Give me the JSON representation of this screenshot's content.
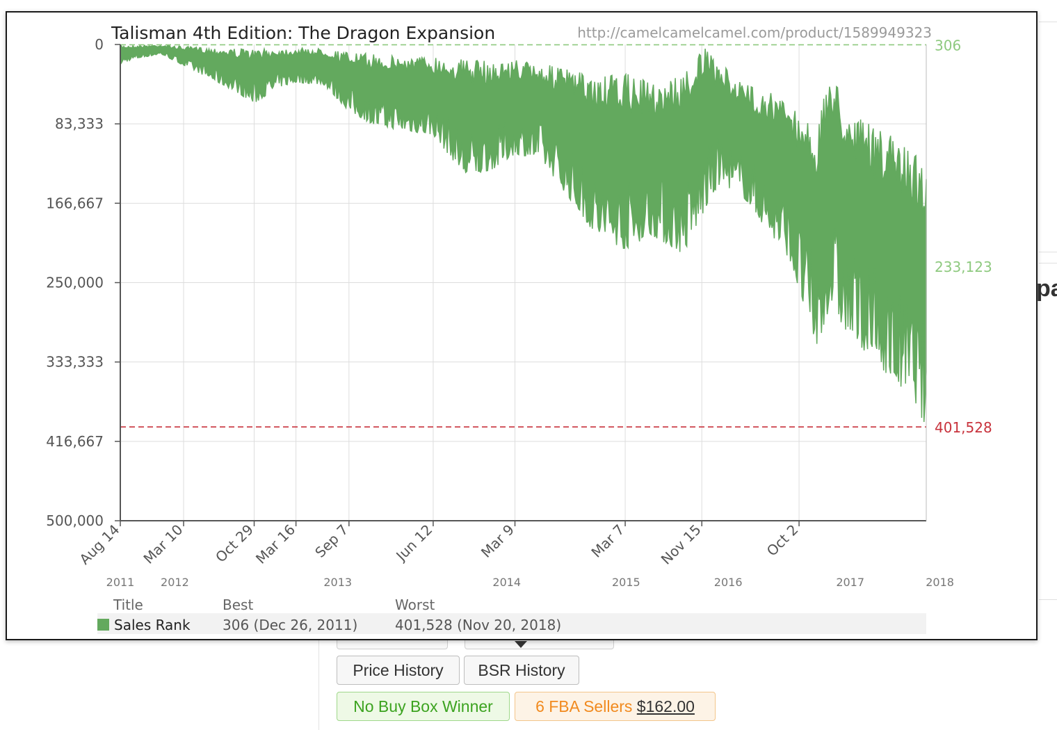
{
  "buttons": {
    "price_history": "Price History",
    "bsr_history": "BSR History",
    "no_buy_box": "No Buy Box Winner",
    "fba_sellers": "6 FBA Sellers",
    "fba_price": "$162.00"
  },
  "background_text": "pa",
  "colors": {
    "series": "#63a95e",
    "best_line": "#8ec97f",
    "worst_line": "#c8323c",
    "axis": "#555555",
    "grid": "#dddddd",
    "url": "#9a9a9a",
    "label": "#555555"
  },
  "chart_data": {
    "type": "area",
    "title": "Talisman 4th Edition: The Dragon Expansion",
    "url": "http://camelcamelcamel.com/product/1589949323",
    "y_inverted": true,
    "ylim": [
      0,
      500000
    ],
    "y_ticks": [
      0,
      83333,
      166667,
      250000,
      333333,
      416667,
      500000
    ],
    "y_tick_labels": [
      "0",
      "83,333",
      "166,667",
      "250,000",
      "333,333",
      "416,667",
      "500,000"
    ],
    "x_range": [
      "2011-08-14",
      "2018-11-26"
    ],
    "x_ticks": [
      {
        "date": "2011-08-14",
        "label": "Aug 14"
      },
      {
        "date": "2012-03-10",
        "label": "Mar 10"
      },
      {
        "date": "2012-10-29",
        "label": "Oct 29"
      },
      {
        "date": "2013-03-16",
        "label": "Mar 16"
      },
      {
        "date": "2013-09-07",
        "label": "Sep 7"
      },
      {
        "date": "2014-06-12",
        "label": "Jun 12"
      },
      {
        "date": "2015-03-09",
        "label": "Mar 9"
      },
      {
        "date": "2016-03-07",
        "label": "Mar 7"
      },
      {
        "date": "2016-11-15",
        "label": "Nov 15"
      },
      {
        "date": "2017-10-02",
        "label": "Oct 2"
      }
    ],
    "year_labels": [
      {
        "date": "2011-08-14",
        "label": "2011"
      },
      {
        "date": "2012-02-10",
        "label": "2012"
      },
      {
        "date": "2013-08-01",
        "label": "2013"
      },
      {
        "date": "2015-02-10",
        "label": "2014"
      },
      {
        "date": "2016-03-10",
        "label": "2015"
      },
      {
        "date": "2017-02-10",
        "label": "2016"
      },
      {
        "date": "2018-03-20",
        "label": "2017"
      },
      {
        "date": "2019-01-10",
        "label": "2018"
      }
    ],
    "reference_lines": [
      {
        "name": "best",
        "value": 306,
        "label": "306"
      },
      {
        "name": "worst",
        "value": 401528,
        "label": "401,528"
      }
    ],
    "current_value_label": "233,123",
    "series": [
      {
        "name": "Sales Rank",
        "envelope": [
          {
            "x": "2011-08-14",
            "best": 500,
            "worst": 20000
          },
          {
            "x": "2011-10-01",
            "best": 800,
            "worst": 15000
          },
          {
            "x": "2011-12-26",
            "best": 306,
            "worst": 10000
          },
          {
            "x": "2012-03-10",
            "best": 2000,
            "worst": 22000
          },
          {
            "x": "2012-06-01",
            "best": 3000,
            "worst": 35000
          },
          {
            "x": "2012-09-01",
            "best": 4000,
            "worst": 50000
          },
          {
            "x": "2012-10-29",
            "best": 5000,
            "worst": 62000
          },
          {
            "x": "2013-01-15",
            "best": 4000,
            "worst": 45000
          },
          {
            "x": "2013-03-16",
            "best": 3500,
            "worst": 40000
          },
          {
            "x": "2013-06-15",
            "best": 4000,
            "worst": 42000
          },
          {
            "x": "2013-09-07",
            "best": 8000,
            "worst": 70000
          },
          {
            "x": "2013-12-01",
            "best": 10000,
            "worst": 85000
          },
          {
            "x": "2014-03-01",
            "best": 12000,
            "worst": 90000
          },
          {
            "x": "2014-06-12",
            "best": 12000,
            "worst": 95000
          },
          {
            "x": "2014-10-01",
            "best": 15000,
            "worst": 140000
          },
          {
            "x": "2015-01-01",
            "best": 18000,
            "worst": 130000
          },
          {
            "x": "2015-03-09",
            "best": 15000,
            "worst": 115000
          },
          {
            "x": "2015-06-01",
            "best": 20000,
            "worst": 120000
          },
          {
            "x": "2015-09-01",
            "best": 25000,
            "worst": 160000
          },
          {
            "x": "2015-12-01",
            "best": 35000,
            "worst": 200000
          },
          {
            "x": "2016-03-07",
            "best": 30000,
            "worst": 215000
          },
          {
            "x": "2016-06-01",
            "best": 40000,
            "worst": 200000
          },
          {
            "x": "2016-09-15",
            "best": 30000,
            "worst": 220000
          },
          {
            "x": "2016-11-15",
            "best": 1000,
            "worst": 180000
          },
          {
            "x": "2017-01-15",
            "best": 20000,
            "worst": 145000
          },
          {
            "x": "2017-04-01",
            "best": 40000,
            "worst": 160000
          },
          {
            "x": "2017-07-01",
            "best": 50000,
            "worst": 200000
          },
          {
            "x": "2017-09-01",
            "best": 60000,
            "worst": 225000
          },
          {
            "x": "2017-10-02",
            "best": 70000,
            "worst": 260000
          },
          {
            "x": "2017-12-01",
            "best": 90000,
            "worst": 320000
          },
          {
            "x": "2018-01-15",
            "best": 20000,
            "worst": 270000
          },
          {
            "x": "2018-03-01",
            "best": 60000,
            "worst": 300000
          },
          {
            "x": "2018-05-01",
            "best": 80000,
            "worst": 320000
          },
          {
            "x": "2018-07-01",
            "best": 90000,
            "worst": 340000
          },
          {
            "x": "2018-09-01",
            "best": 100000,
            "worst": 360000
          },
          {
            "x": "2018-10-15",
            "best": 110000,
            "worst": 370000
          },
          {
            "x": "2018-11-20",
            "best": 120000,
            "worst": 401528
          },
          {
            "x": "2018-11-26",
            "best": 112000,
            "worst": 390000
          }
        ]
      }
    ],
    "legend": {
      "headers": [
        "Title",
        "Best",
        "Worst"
      ],
      "rows": [
        {
          "title": "Sales Rank",
          "best": "306 (Dec 26, 2011)",
          "worst": "401,528 (Nov 20, 2018)"
        }
      ]
    }
  }
}
